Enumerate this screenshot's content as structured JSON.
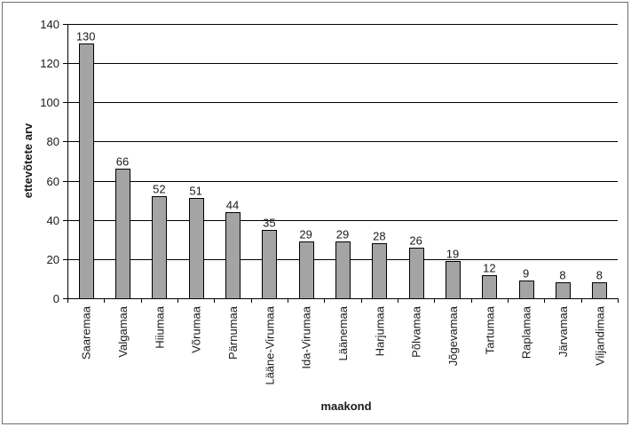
{
  "chart_data": {
    "type": "bar",
    "categories": [
      "Saaremaa",
      "Valgamaa",
      "Hiiumaa",
      "Võrumaa",
      "Pärnumaa",
      "Lääne-Virumaa",
      "Ida-Virumaa",
      "Läänemaa",
      "Harjumaa",
      "Põlvamaa",
      "Jõgevamaa",
      "Tartumaa",
      "Raplamaa",
      "Järvamaa",
      "Viljandimaa"
    ],
    "values": [
      130,
      66,
      52,
      51,
      44,
      35,
      29,
      29,
      28,
      26,
      19,
      12,
      9,
      8,
      8
    ],
    "xlabel": "maakond",
    "ylabel": "ettevõtete arv",
    "ylim": [
      0,
      140
    ],
    "yticks": [
      0,
      20,
      40,
      60,
      80,
      100,
      120,
      140
    ],
    "grid": true,
    "data_labels": true,
    "legend": false,
    "bar_color": "#a4a4a4",
    "bar_edge_color": "#000000",
    "grid_color": "#000000",
    "frame_color": "#6d6d6d"
  }
}
